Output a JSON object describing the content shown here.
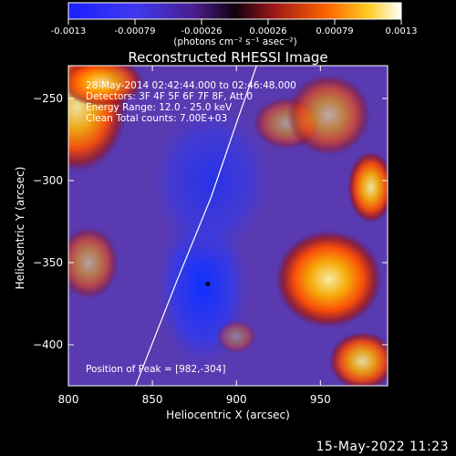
{
  "chart_data": {
    "type": "heatmap",
    "title": "Reconstructed RHESSI Image",
    "xlabel": "Heliocentric X (arcsec)",
    "ylabel": "Heliocentric Y (arcsec)",
    "xlim": [
      800,
      990
    ],
    "ylim": [
      -425,
      -230
    ],
    "x_ticks": [
      800,
      850,
      900,
      950
    ],
    "y_ticks": [
      -250,
      -300,
      -350,
      -400
    ],
    "colorbar": {
      "ticks": [
        "-0.0013",
        "-0.00079",
        "-0.00026",
        "0.00026",
        "0.00079",
        "0.0013"
      ],
      "unit_label": "(photons cm⁻² s⁻¹ asec⁻²)",
      "range": [
        -0.0013,
        0.0013
      ]
    },
    "annotations": [
      "28-May-2014 02:42:44.000 to 02:46:48.000",
      "Detectors: 3F 4F 5F 6F 7F 8F, Att 0",
      "Energy Range: 12.0 - 25.0 keV",
      "Clean    Total counts: 7.00E+03"
    ],
    "peak_label": "Position of Peak = [982,-304]",
    "peak": [
      982,
      -304
    ],
    "min_marker": [
      883,
      -363
    ],
    "regions": [
      {
        "x": 805,
        "y": -255,
        "rx": 30,
        "ry": 40,
        "level": 0.9
      },
      {
        "x": 820,
        "y": -240,
        "rx": 25,
        "ry": 15,
        "level": 0.8
      },
      {
        "x": 812,
        "y": -350,
        "rx": 18,
        "ry": 22,
        "level": 0.55
      },
      {
        "x": 930,
        "y": -265,
        "rx": 20,
        "ry": 16,
        "level": 0.5
      },
      {
        "x": 955,
        "y": -260,
        "rx": 25,
        "ry": 25,
        "level": 0.6
      },
      {
        "x": 980,
        "y": -304,
        "rx": 14,
        "ry": 22,
        "level": 0.9
      },
      {
        "x": 955,
        "y": -360,
        "rx": 32,
        "ry": 30,
        "level": 0.95
      },
      {
        "x": 975,
        "y": -410,
        "rx": 20,
        "ry": 18,
        "level": 0.85
      },
      {
        "x": 900,
        "y": -395,
        "rx": 12,
        "ry": 10,
        "level": 0.35
      }
    ],
    "limb_curve": [
      [
        912,
        -230
      ],
      [
        900,
        -265
      ],
      [
        885,
        -310
      ],
      [
        865,
        -360
      ],
      [
        840,
        -425
      ]
    ]
  },
  "footer": "15-May-2022 11:23"
}
